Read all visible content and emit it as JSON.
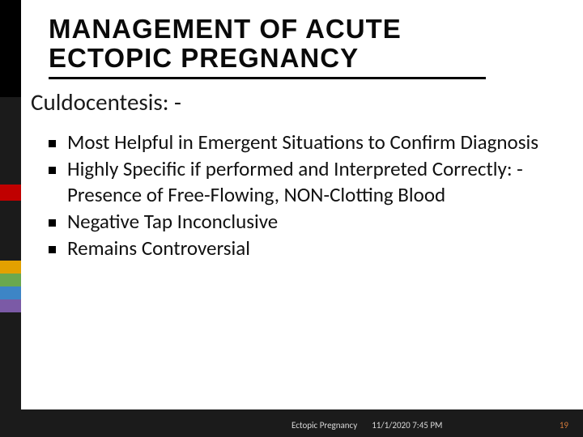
{
  "colors": {
    "background": "#ffffff",
    "accent_bar": "#1b1b1b",
    "accent_top": "#000000",
    "accent_stripes": [
      "#c00000",
      "#e2a100",
      "#6aa84f",
      "#3d85c6",
      "#7b5aa6"
    ],
    "title_text": "#0a0a0a",
    "title_underline": "#000000",
    "body_text": "#111111",
    "footer_bg": "#1b1b1b",
    "footer_text": "#d8d8d8",
    "page_number": "#d47a3a"
  },
  "typography": {
    "title_fontsize": 33,
    "title_weight": 600,
    "title_letter_spacing": 1,
    "subtitle_fontsize": 29,
    "bullet_fontsize": 25,
    "footer_fontsize": 11
  },
  "title": {
    "line1": "MANAGEMENT OF ACUTE",
    "line2": "ECTOPIC PREGNANCY"
  },
  "subtitle": "Culdocentesis: -",
  "bullets": [
    "Most Helpful in Emergent Situations to Confirm Diagnosis",
    "Highly Specific if performed and Interpreted Correctly: - Presence of Free-Flowing, NON-Clotting Blood",
    "Negative Tap Inconclusive",
    "Remains Controversial"
  ],
  "footer": {
    "left": "Ectopic Pregnancy",
    "center": "11/1/2020 7:45 PM",
    "page": "19"
  },
  "layout": {
    "slide_width": 720,
    "slide_height": 540,
    "accent_bar_width": 26,
    "title_underline_width": 540,
    "title_underline_height": 3
  }
}
